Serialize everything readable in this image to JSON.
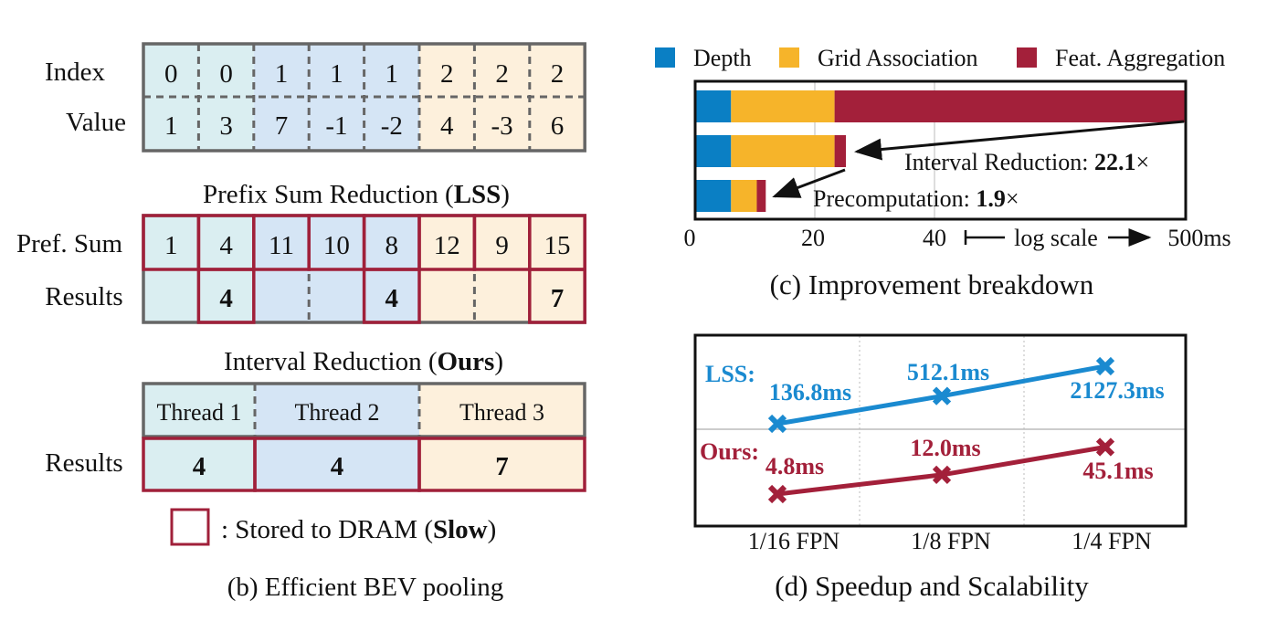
{
  "panel_b": {
    "caption": "(b) Efficient BEV pooling",
    "index_label": "Index",
    "value_label": "Value",
    "index": [
      "0",
      "0",
      "1",
      "1",
      "1",
      "2",
      "2",
      "2"
    ],
    "values": [
      "1",
      "3",
      "7",
      "-1",
      "-2",
      "4",
      "-3",
      "6"
    ],
    "lss_title_a": "Prefix Sum Reduction (",
    "lss_title_b": "LSS",
    "lss_title_c": ")",
    "prefsum_label": "Pref. Sum",
    "results_label": "Results",
    "prefsum": [
      "1",
      "4",
      "11",
      "10",
      "8",
      "12",
      "9",
      "15"
    ],
    "lss_results": [
      "",
      "4",
      "",
      "",
      "4",
      "",
      "",
      "7"
    ],
    "ours_title_a": "Interval Reduction (",
    "ours_title_b": "Ours",
    "ours_title_c": ")",
    "threads": [
      "Thread 1",
      "Thread 2",
      "Thread 3"
    ],
    "ours_results": [
      "4",
      "4",
      "7"
    ],
    "legend_a": ": Stored to DRAM (",
    "legend_b": "Slow",
    "legend_c": ")",
    "colors": {
      "group0": "#daeef1",
      "group1": "#d5e5f5",
      "group2": "#fdf0dc",
      "border": "#666666",
      "dram": "#a0203a"
    }
  },
  "chart_data": [
    {
      "type": "bar",
      "orientation": "horizontal-stacked",
      "title": "(c) Improvement breakdown",
      "legend": [
        "Depth",
        "Grid Association",
        "Feat. Aggregation"
      ],
      "legend_placement": "top",
      "colors": [
        "#0a7fc4",
        "#f6b42a",
        "#a3203a"
      ],
      "x_ticks": [
        "0",
        "20",
        "40",
        "500ms"
      ],
      "x_scale_note": "log scale",
      "x_range": [
        0,
        500
      ],
      "bars": [
        {
          "depth": 6,
          "grid": 23.3,
          "total": 500
        },
        {
          "depth": 6,
          "grid": 23.3,
          "total": 25.2
        },
        {
          "depth": 6,
          "grid": 10.3,
          "total": 11.8
        }
      ],
      "annotations": [
        {
          "a": "Interval Reduction: ",
          "b": "22.1",
          "c": "×"
        },
        {
          "a": "Precomputation: ",
          "b": "1.9",
          "c": "×"
        }
      ]
    },
    {
      "type": "line",
      "title": "(d) Speedup and Scalability",
      "categories": [
        "1/16 FPN",
        "1/8 FPN",
        "1/4 FPN"
      ],
      "y_scale": "log",
      "series": [
        {
          "name": "LSS:",
          "color": "#1a8ad0",
          "values": [
            136.8,
            512.1,
            2127.3
          ],
          "labels": [
            "136.8ms",
            "512.1ms",
            "2127.3ms"
          ]
        },
        {
          "name": "Ours:",
          "color": "#a3203a",
          "values": [
            4.8,
            12.0,
            45.1
          ],
          "labels": [
            "4.8ms",
            "12.0ms",
            "45.1ms"
          ]
        }
      ]
    }
  ]
}
